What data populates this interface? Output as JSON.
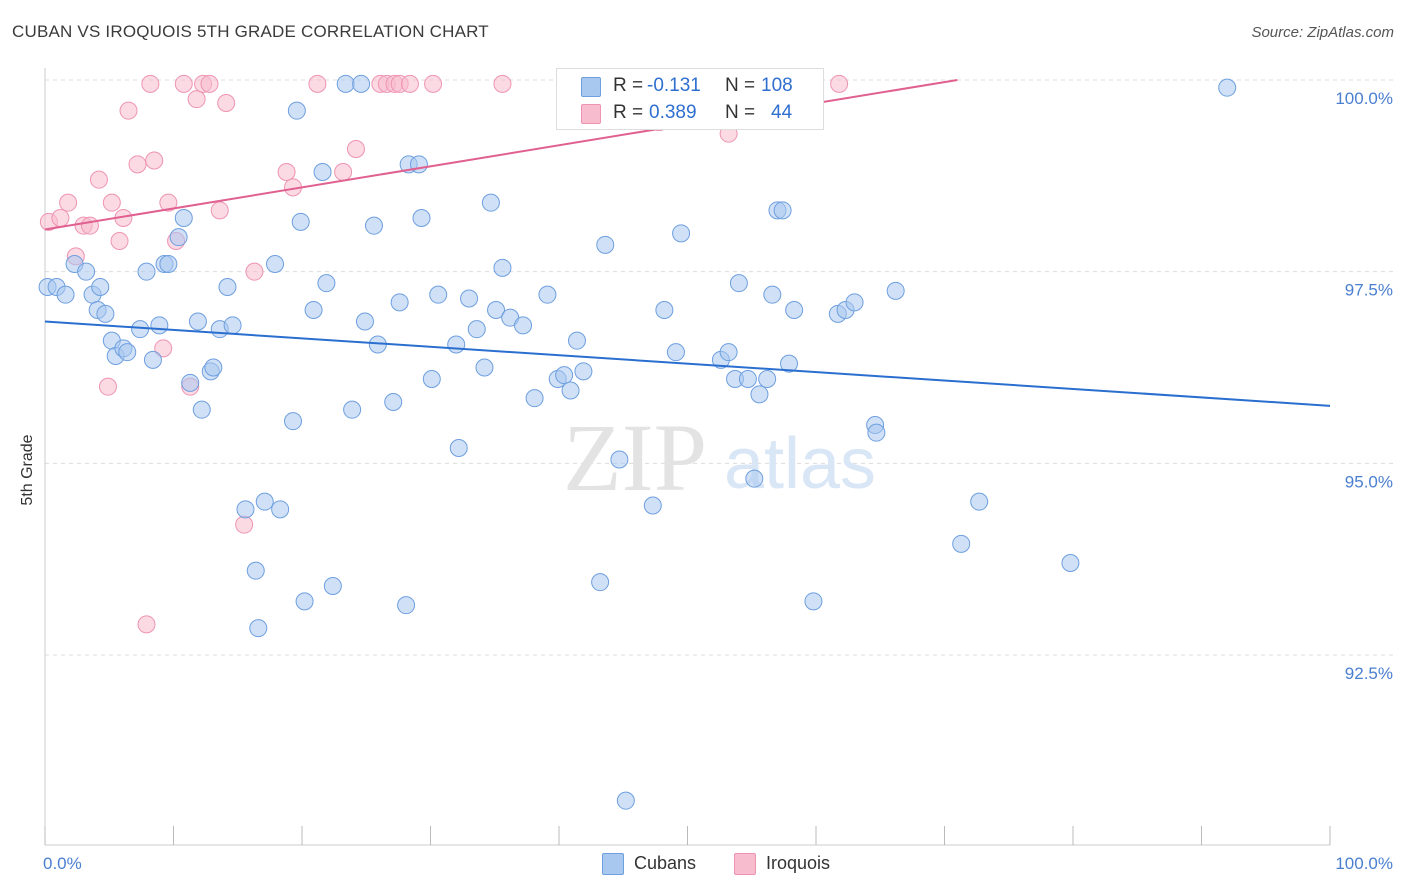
{
  "header": {
    "title": "CUBAN VS IROQUOIS 5TH GRADE CORRELATION CHART",
    "source": "Source: ZipAtlas.com"
  },
  "watermark": {
    "zip": "ZIP",
    "atlas": "atlas"
  },
  "legend": {
    "r_label": "R =",
    "n_label": "N =",
    "cubans": {
      "r": "-0.131",
      "n": "108"
    },
    "iroquois": {
      "r": "0.389",
      "n": "44"
    }
  },
  "colors": {
    "cubans_fill": "#a9c8f0",
    "cubans_stroke": "#6e9fdf",
    "cubans_line": "#2a6fcf",
    "iroquois_fill": "#f7bccd",
    "iroquois_stroke": "#ee94b2",
    "iroquois_line": "#e0608f",
    "tick_label": "#4a7fd0",
    "grid": "#dcdcdc"
  },
  "chart_data": {
    "type": "scatter",
    "title": "CUBAN VS IROQUOIS 5TH GRADE CORRELATION CHART",
    "xlabel": "",
    "ylabel": "5th Grade",
    "xlim": [
      0,
      100
    ],
    "ylim": [
      90.2,
      100.2
    ],
    "y_ticks": [
      92.5,
      95.0,
      97.5,
      100.0
    ],
    "y_tick_labels": [
      "92.5%",
      "95.0%",
      "97.5%",
      "100.0%"
    ],
    "x_tick_labels": [
      "0.0%",
      "100.0%"
    ],
    "grid": "horizontal dashed",
    "legend_placement": "top-center",
    "series": [
      {
        "name": "Cubans",
        "r": -0.131,
        "n": 108,
        "trend": {
          "x": [
            0,
            100
          ],
          "y": [
            96.85,
            95.75
          ]
        },
        "points": [
          [
            0.2,
            97.3
          ],
          [
            0.9,
            97.3
          ],
          [
            1.6,
            97.2
          ],
          [
            2.3,
            97.6
          ],
          [
            3.2,
            97.5
          ],
          [
            3.7,
            97.2
          ],
          [
            4.3,
            97.3
          ],
          [
            4.1,
            97.0
          ],
          [
            4.7,
            96.95
          ],
          [
            5.2,
            96.6
          ],
          [
            5.5,
            96.4
          ],
          [
            6.1,
            96.5
          ],
          [
            6.4,
            96.45
          ],
          [
            7.4,
            96.75
          ],
          [
            7.9,
            97.5
          ],
          [
            8.4,
            96.35
          ],
          [
            8.9,
            96.8
          ],
          [
            9.3,
            97.6
          ],
          [
            9.6,
            97.6
          ],
          [
            10.4,
            97.95
          ],
          [
            10.8,
            98.2
          ],
          [
            11.3,
            96.05
          ],
          [
            11.9,
            96.85
          ],
          [
            12.2,
            95.7
          ],
          [
            12.9,
            96.2
          ],
          [
            13.1,
            96.25
          ],
          [
            13.6,
            96.75
          ],
          [
            14.2,
            97.3
          ],
          [
            14.6,
            96.8
          ],
          [
            15.6,
            94.4
          ],
          [
            16.4,
            93.6
          ],
          [
            16.6,
            92.85
          ],
          [
            17.1,
            94.5
          ],
          [
            17.9,
            97.6
          ],
          [
            18.3,
            94.4
          ],
          [
            19.3,
            95.55
          ],
          [
            19.6,
            99.6
          ],
          [
            19.9,
            98.15
          ],
          [
            20.2,
            93.2
          ],
          [
            20.9,
            97.0
          ],
          [
            21.6,
            98.8
          ],
          [
            21.9,
            97.35
          ],
          [
            22.4,
            93.4
          ],
          [
            23.4,
            99.95
          ],
          [
            23.9,
            95.7
          ],
          [
            24.6,
            99.95
          ],
          [
            24.9,
            96.85
          ],
          [
            25.6,
            98.1
          ],
          [
            25.9,
            96.55
          ],
          [
            27.1,
            95.8
          ],
          [
            27.6,
            97.1
          ],
          [
            28.3,
            98.9
          ],
          [
            28.1,
            93.15
          ],
          [
            29.1,
            98.9
          ],
          [
            29.3,
            98.2
          ],
          [
            30.1,
            96.1
          ],
          [
            30.6,
            97.2
          ],
          [
            32.0,
            96.55
          ],
          [
            32.2,
            95.2
          ],
          [
            33.0,
            97.15
          ],
          [
            33.6,
            96.75
          ],
          [
            34.2,
            96.25
          ],
          [
            34.7,
            98.4
          ],
          [
            35.1,
            97.0
          ],
          [
            35.6,
            97.55
          ],
          [
            36.2,
            96.9
          ],
          [
            37.2,
            96.8
          ],
          [
            38.1,
            95.85
          ],
          [
            39.1,
            97.2
          ],
          [
            39.9,
            96.1
          ],
          [
            40.4,
            96.15
          ],
          [
            40.9,
            95.95
          ],
          [
            41.4,
            96.6
          ],
          [
            41.9,
            96.2
          ],
          [
            43.2,
            93.45
          ],
          [
            43.6,
            97.85
          ],
          [
            44.7,
            95.05
          ],
          [
            45.2,
            90.6
          ],
          [
            47.3,
            94.45
          ],
          [
            48.2,
            97.0
          ],
          [
            49.1,
            96.45
          ],
          [
            49.5,
            98.0
          ],
          [
            52.6,
            96.35
          ],
          [
            53.2,
            96.45
          ],
          [
            53.7,
            96.1
          ],
          [
            54.0,
            97.35
          ],
          [
            54.7,
            96.1
          ],
          [
            55.2,
            94.8
          ],
          [
            56.2,
            96.1
          ],
          [
            56.6,
            97.2
          ],
          [
            57.0,
            98.3
          ],
          [
            57.4,
            98.3
          ],
          [
            57.9,
            96.3
          ],
          [
            58.3,
            97.0
          ],
          [
            59.8,
            93.2
          ],
          [
            61.7,
            96.95
          ],
          [
            62.3,
            97.0
          ],
          [
            63.0,
            97.1
          ],
          [
            64.6,
            95.5
          ],
          [
            64.7,
            95.4
          ],
          [
            71.3,
            93.95
          ],
          [
            72.7,
            94.5
          ],
          [
            79.8,
            93.7
          ],
          [
            92.0,
            99.9
          ],
          [
            55.6,
            95.9
          ],
          [
            66.2,
            97.25
          ]
        ]
      },
      {
        "name": "Iroquois",
        "r": 0.389,
        "n": 44,
        "trend": {
          "x": [
            0,
            71
          ],
          "y": [
            98.05,
            100.0
          ]
        },
        "points": [
          [
            0.3,
            98.15
          ],
          [
            1.2,
            98.2
          ],
          [
            1.8,
            98.4
          ],
          [
            2.4,
            97.7
          ],
          [
            3.0,
            98.1
          ],
          [
            3.5,
            98.1
          ],
          [
            4.2,
            98.7
          ],
          [
            4.9,
            96.0
          ],
          [
            5.2,
            98.4
          ],
          [
            5.8,
            97.9
          ],
          [
            6.1,
            98.2
          ],
          [
            6.5,
            99.6
          ],
          [
            7.2,
            98.9
          ],
          [
            8.2,
            99.95
          ],
          [
            8.5,
            98.95
          ],
          [
            9.2,
            96.5
          ],
          [
            9.6,
            98.4
          ],
          [
            10.2,
            97.9
          ],
          [
            10.8,
            99.95
          ],
          [
            11.3,
            96.0
          ],
          [
            11.8,
            99.75
          ],
          [
            12.3,
            99.95
          ],
          [
            12.8,
            99.95
          ],
          [
            13.6,
            98.3
          ],
          [
            14.1,
            99.7
          ],
          [
            15.5,
            94.2
          ],
          [
            16.3,
            97.5
          ],
          [
            18.8,
            98.8
          ],
          [
            19.3,
            98.6
          ],
          [
            21.2,
            99.95
          ],
          [
            23.2,
            98.8
          ],
          [
            24.2,
            99.1
          ],
          [
            26.1,
            99.95
          ],
          [
            26.6,
            99.95
          ],
          [
            27.2,
            99.95
          ],
          [
            27.6,
            99.95
          ],
          [
            28.4,
            99.95
          ],
          [
            30.2,
            99.95
          ],
          [
            35.6,
            99.95
          ],
          [
            47.8,
            99.45
          ],
          [
            53.2,
            99.3
          ],
          [
            59.7,
            99.95
          ],
          [
            7.9,
            92.9
          ],
          [
            61.8,
            99.95
          ]
        ]
      }
    ]
  }
}
